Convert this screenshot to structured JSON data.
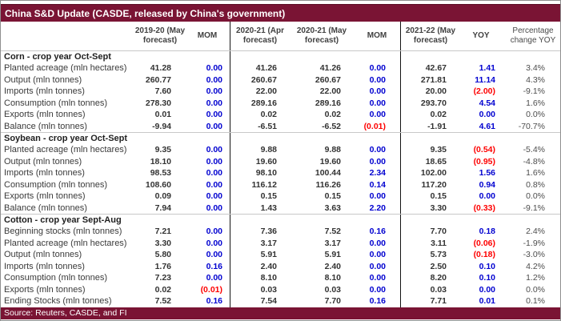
{
  "chart_data": {
    "type": "table",
    "title": "China S&D Update (CASDE, released by China's government)",
    "footnote": "Source: Reuters, CASDE, and FI",
    "columns": [
      "",
      "2019-20 (May forecast)",
      "MOM",
      "2020-21 (Apr forecast)",
      "2020-21 (May forecast)",
      "MOM",
      "2021-22 (May forecast)",
      "YOY",
      "Percentage change YOY"
    ],
    "sections": [
      {
        "name": "Corn - crop year Oct-Sept",
        "rows": [
          {
            "label": "Planted acreage (mln hectares)",
            "values": [
              "41.28",
              "0.00",
              "41.26",
              "41.26",
              "0.00",
              "42.67",
              "1.41",
              "3.4%"
            ]
          },
          {
            "label": "Output (mln tonnes)",
            "values": [
              "260.77",
              "0.00",
              "260.67",
              "260.67",
              "0.00",
              "271.81",
              "11.14",
              "4.3%"
            ]
          },
          {
            "label": "Imports (mln tonnes)",
            "values": [
              "7.60",
              "0.00",
              "22.00",
              "22.00",
              "0.00",
              "20.00",
              "(2.00)",
              "-9.1%"
            ]
          },
          {
            "label": "Consumption (mln tonnes)",
            "values": [
              "278.30",
              "0.00",
              "289.16",
              "289.16",
              "0.00",
              "293.70",
              "4.54",
              "1.6%"
            ]
          },
          {
            "label": "Exports (mln tonnes)",
            "values": [
              "0.01",
              "0.00",
              "0.02",
              "0.02",
              "0.00",
              "0.02",
              "0.00",
              "0.0%"
            ]
          },
          {
            "label": "Balance (mln tonnes)",
            "values": [
              "-9.94",
              "0.00",
              "-6.51",
              "-6.52",
              "(0.01)",
              "-1.91",
              "4.61",
              "-70.7%"
            ]
          }
        ]
      },
      {
        "name": "Soybean - crop year Oct-Sept",
        "rows": [
          {
            "label": "Planted acreage (mln hectares)",
            "values": [
              "9.35",
              "0.00",
              "9.88",
              "9.88",
              "0.00",
              "9.35",
              "(0.54)",
              "-5.4%"
            ]
          },
          {
            "label": "Output (mln tonnes)",
            "values": [
              "18.10",
              "0.00",
              "19.60",
              "19.60",
              "0.00",
              "18.65",
              "(0.95)",
              "-4.8%"
            ]
          },
          {
            "label": "Imports (mln tonnes)",
            "values": [
              "98.53",
              "0.00",
              "98.10",
              "100.44",
              "2.34",
              "102.00",
              "1.56",
              "1.6%"
            ]
          },
          {
            "label": "Consumption (mln tonnes)",
            "values": [
              "108.60",
              "0.00",
              "116.12",
              "116.26",
              "0.14",
              "117.20",
              "0.94",
              "0.8%"
            ]
          },
          {
            "label": "Exports (mln tonnes)",
            "values": [
              "0.09",
              "0.00",
              "0.15",
              "0.15",
              "0.00",
              "0.15",
              "0.00",
              "0.0%"
            ]
          },
          {
            "label": "Balance (mln tonnes)",
            "values": [
              "7.94",
              "0.00",
              "1.43",
              "3.63",
              "2.20",
              "3.30",
              "(0.33)",
              "-9.1%"
            ]
          }
        ]
      },
      {
        "name": "Cotton - crop year Sept-Aug",
        "rows": [
          {
            "label": "Beginning stocks (mln tonnes)",
            "values": [
              "7.21",
              "0.00",
              "7.36",
              "7.52",
              "0.16",
              "7.70",
              "0.18",
              "2.4%"
            ]
          },
          {
            "label": "Planted acreage (mln hectares)",
            "values": [
              "3.30",
              "0.00",
              "3.17",
              "3.17",
              "0.00",
              "3.11",
              "(0.06)",
              "-1.9%"
            ]
          },
          {
            "label": "Output (mln tonnes)",
            "values": [
              "5.80",
              "0.00",
              "5.91",
              "5.91",
              "0.00",
              "5.73",
              "(0.18)",
              "-3.0%"
            ]
          },
          {
            "label": "Imports (mln tonnes)",
            "values": [
              "1.76",
              "0.16",
              "2.40",
              "2.40",
              "0.00",
              "2.50",
              "0.10",
              "4.2%"
            ]
          },
          {
            "label": "Consumption (mln tonnes)",
            "values": [
              "7.23",
              "0.00",
              "8.10",
              "8.10",
              "0.00",
              "8.20",
              "0.10",
              "1.2%"
            ]
          },
          {
            "label": "Exports (mln tonnes)",
            "values": [
              "0.02",
              "(0.01)",
              "0.03",
              "0.03",
              "0.00",
              "0.03",
              "0.00",
              "0.0%"
            ]
          },
          {
            "label": "Ending Stocks (mln tonnes)",
            "values": [
              "7.52",
              "0.16",
              "7.54",
              "7.70",
              "0.16",
              "7.71",
              "0.01",
              "0.1%"
            ]
          }
        ]
      }
    ],
    "colors": {
      "title_bar": "#7A1434",
      "footer_bar": "#7A1434",
      "positive_or_zero_change": "#0000D0",
      "negative_change_parenthesized": "#FE0000",
      "value_text": "#333333",
      "percent_text": "#4D4D4D",
      "column_divider": "#141414",
      "section_rule": "#C8C8C8"
    }
  }
}
